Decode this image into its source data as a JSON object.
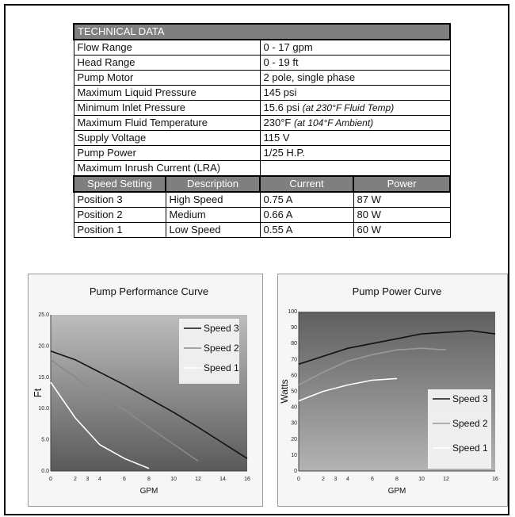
{
  "technical_data": {
    "title": "TECHNICAL DATA",
    "specs": [
      {
        "label": "Flow Range",
        "value": "0 - 17 gpm",
        "note": ""
      },
      {
        "label": "Head Range",
        "value": "0 - 19 ft",
        "note": ""
      },
      {
        "label": "Pump Motor",
        "value": "2 pole, single phase",
        "note": ""
      },
      {
        "label": "Maximum Liquid Pressure",
        "value": "145 psi",
        "note": ""
      },
      {
        "label": "Minimum Inlet Pressure",
        "value": "15.6 psi",
        "note": "(at 230°F Fluid Temp)"
      },
      {
        "label": "Maximum Fluid Temperature",
        "value": "230°F",
        "note": "(at 104°F Ambient)"
      },
      {
        "label": "Supply Voltage",
        "value": "115 V",
        "note": ""
      },
      {
        "label": "Pump Power",
        "value": "1/25 H.P.",
        "note": ""
      },
      {
        "label": "Maximum Inrush Current (LRA)",
        "value": "",
        "note": ""
      }
    ],
    "speed_headers": [
      "Speed Setting",
      "Description",
      "Current",
      "Power"
    ],
    "speed_rows": [
      [
        "Position 3",
        "High Speed",
        "0.75 A",
        "87 W"
      ],
      [
        "Position 2",
        "Medium",
        "0.66 A",
        "80 W"
      ],
      [
        "Position 1",
        "Low Speed",
        "0.55 A",
        "60 W"
      ]
    ]
  },
  "chart_data": [
    {
      "type": "line",
      "title": "Pump Performance Curve",
      "xlabel": "GPM",
      "ylabel": "Ft",
      "xlim": [
        0,
        16
      ],
      "ylim": [
        0,
        25
      ],
      "x_ticks": [
        0,
        2,
        3,
        4,
        6,
        8,
        10,
        12,
        14,
        16
      ],
      "y_ticks": [
        "0.0",
        "5.0",
        "10.0",
        "15.0",
        "20.0",
        "25.0"
      ],
      "y_tick_values": [
        0,
        5,
        10,
        15,
        20,
        25
      ],
      "legend_position": "top-right",
      "series": [
        {
          "name": "Speed 3",
          "color": "#111111",
          "x": [
            0,
            2,
            4,
            6,
            8,
            10,
            12,
            14,
            16
          ],
          "y": [
            19.2,
            17.8,
            15.8,
            13.8,
            11.6,
            9.4,
            7.0,
            4.5,
            2.0
          ]
        },
        {
          "name": "Speed 2",
          "color": "#8a8a8a",
          "x": [
            0,
            2,
            4,
            6,
            8,
            10,
            12
          ],
          "y": [
            17.8,
            15.0,
            12.0,
            9.8,
            7.0,
            4.3,
            1.6
          ]
        },
        {
          "name": "Speed 1",
          "color": "#ffffff",
          "x": [
            0,
            2,
            4,
            6,
            8
          ],
          "y": [
            14.2,
            8.5,
            4.2,
            2.0,
            0.4
          ]
        }
      ]
    },
    {
      "type": "line",
      "title": "Pump Power Curve",
      "xlabel": "GPM",
      "ylabel": "Watts",
      "xlim": [
        0,
        16
      ],
      "ylim": [
        0,
        100
      ],
      "x_ticks": [
        0,
        2,
        3,
        4,
        6,
        8,
        10,
        12,
        16
      ],
      "y_ticks": [
        "0",
        "10",
        "20",
        "30",
        "40",
        "50",
        "60",
        "70",
        "80",
        "90",
        "100"
      ],
      "y_tick_values": [
        0,
        10,
        20,
        30,
        40,
        50,
        60,
        70,
        80,
        90,
        100
      ],
      "legend_position": "bottom-right",
      "series": [
        {
          "name": "Speed 3",
          "color": "#111111",
          "x": [
            0,
            2,
            4,
            6,
            8,
            10,
            12,
            14,
            16
          ],
          "y": [
            67,
            72,
            77,
            80,
            83,
            86,
            87,
            88,
            86
          ]
        },
        {
          "name": "Speed 2",
          "color": "#9a9a9a",
          "x": [
            0,
            2,
            4,
            6,
            8,
            10,
            12
          ],
          "y": [
            54,
            62,
            69,
            73,
            76,
            77,
            76
          ]
        },
        {
          "name": "Speed 1",
          "color": "#ffffff",
          "x": [
            0,
            2,
            4,
            6,
            8
          ],
          "y": [
            44,
            50,
            54,
            57,
            58
          ]
        }
      ]
    }
  ]
}
